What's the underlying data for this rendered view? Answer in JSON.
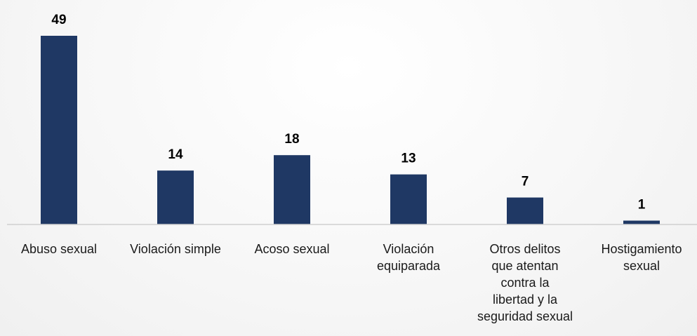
{
  "chart_data": {
    "type": "bar",
    "categories": [
      [
        "Abuso sexual"
      ],
      [
        "Violación simple"
      ],
      [
        "Acoso sexual"
      ],
      [
        "Violación",
        "equiparada"
      ],
      [
        "Otros delitos",
        "que atentan",
        "contra la",
        "libertad y la",
        "seguridad sexual"
      ],
      [
        "Hostigamiento",
        "sexual"
      ]
    ],
    "values": [
      49,
      14,
      18,
      13,
      7,
      1
    ],
    "value_labels": [
      "49",
      "14",
      "18",
      "13",
      "7",
      "1"
    ],
    "title": "",
    "xlabel": "",
    "ylabel": "",
    "ylim": [
      0,
      49
    ],
    "grid": false,
    "legend": "none",
    "colors": {
      "bar": "#1f3864",
      "axis": "#d0d0d0"
    }
  }
}
